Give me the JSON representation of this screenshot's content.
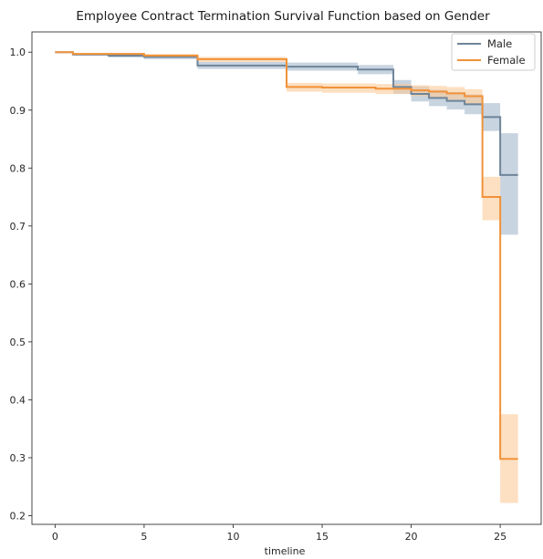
{
  "chart_data": {
    "type": "line",
    "title": "Employee Contract Termination Survival Function based on Gender",
    "xlabel": "timeline",
    "ylabel": "",
    "xlim": [
      -1.3,
      27.3
    ],
    "ylim": [
      0.185,
      1.035
    ],
    "xticks": [
      0,
      5,
      10,
      15,
      20,
      25
    ],
    "yticks": [
      0.2,
      0.3,
      0.4,
      0.5,
      0.6,
      0.7,
      0.8,
      0.9,
      1.0
    ],
    "ytick_labels": [
      "0.2",
      "0.3",
      "0.4",
      "0.5",
      "0.6",
      "0.7",
      "0.8",
      "0.9",
      "1.0"
    ],
    "grid": false,
    "legend_position": "top-right",
    "series": [
      {
        "name": "Male",
        "color": "#6f8599",
        "band_color": "#a3b8cc",
        "x": [
          0,
          1,
          3,
          5,
          8,
          13,
          17,
          19,
          20,
          21,
          22,
          23,
          24,
          25,
          26
        ],
        "y": [
          1.0,
          0.996,
          0.994,
          0.992,
          0.977,
          0.975,
          0.97,
          0.94,
          0.928,
          0.921,
          0.916,
          0.91,
          0.888,
          0.788,
          0.788
        ],
        "lower": [
          1.0,
          0.994,
          0.991,
          0.988,
          0.971,
          0.968,
          0.962,
          0.928,
          0.915,
          0.907,
          0.901,
          0.893,
          0.864,
          0.685,
          0.685
        ],
        "upper": [
          1.0,
          0.998,
          0.997,
          0.995,
          0.983,
          0.982,
          0.978,
          0.952,
          0.941,
          0.935,
          0.931,
          0.927,
          0.912,
          0.86,
          0.86
        ]
      },
      {
        "name": "Female",
        "color": "#f0923a",
        "band_color": "#fbc998",
        "x": [
          0,
          1,
          5,
          8,
          13,
          15,
          18,
          20,
          21,
          22,
          23,
          24,
          25,
          26
        ],
        "y": [
          1.0,
          0.997,
          0.994,
          0.988,
          0.94,
          0.939,
          0.937,
          0.934,
          0.932,
          0.929,
          0.924,
          0.75,
          0.298,
          0.298
        ],
        "lower": [
          1.0,
          0.995,
          0.991,
          0.983,
          0.932,
          0.93,
          0.928,
          0.924,
          0.921,
          0.918,
          0.911,
          0.71,
          0.222,
          0.222
        ],
        "upper": [
          1.0,
          0.999,
          0.997,
          0.992,
          0.947,
          0.946,
          0.945,
          0.943,
          0.942,
          0.94,
          0.936,
          0.785,
          0.375,
          0.375
        ]
      }
    ]
  }
}
